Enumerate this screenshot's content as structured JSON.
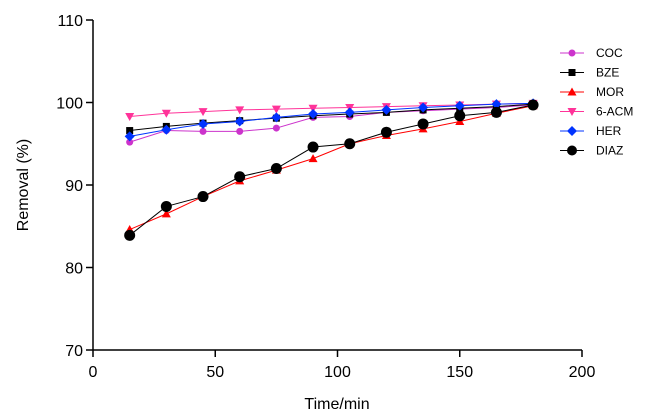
{
  "chart_data": {
    "type": "line",
    "title": "",
    "xlabel": "Time/min",
    "ylabel": "Removal (%)",
    "xlim": [
      0,
      200
    ],
    "ylim": [
      70,
      110
    ],
    "xticks": [
      0,
      50,
      100,
      150,
      200
    ],
    "yticks": [
      70,
      80,
      90,
      100,
      110
    ],
    "grid": false,
    "legend_position": "top-right",
    "series": [
      {
        "name": "COC",
        "color": "#cc33cc",
        "marker": "circle",
        "x": [
          15,
          30,
          45,
          60,
          75,
          90,
          105,
          120,
          135,
          150,
          165,
          180
        ],
        "y": [
          95.2,
          96.6,
          96.5,
          96.5,
          96.9,
          98.2,
          98.3,
          98.8,
          99.0,
          99.2,
          99.4,
          99.7
        ]
      },
      {
        "name": "BZE",
        "color": "#000000",
        "marker": "square",
        "x": [
          15,
          30,
          45,
          60,
          75,
          90,
          105,
          120,
          135,
          150,
          165,
          180
        ],
        "y": [
          96.6,
          97.1,
          97.5,
          97.8,
          98.1,
          98.4,
          98.6,
          98.8,
          99.1,
          99.3,
          99.5,
          99.8
        ]
      },
      {
        "name": "MOR",
        "color": "#ff0000",
        "marker": "triangle-up",
        "x": [
          15,
          30,
          45,
          60,
          75,
          90,
          105,
          120,
          135,
          150,
          165,
          180
        ],
        "y": [
          84.6,
          86.5,
          88.6,
          90.5,
          91.8,
          93.2,
          95.0,
          96.0,
          96.8,
          97.7,
          98.7,
          99.6
        ]
      },
      {
        "name": "6-ACM",
        "color": "#ff3399",
        "marker": "triangle-down",
        "x": [
          15,
          30,
          45,
          60,
          75,
          90,
          105,
          120,
          135,
          150,
          165,
          180
        ],
        "y": [
          98.3,
          98.7,
          98.9,
          99.1,
          99.2,
          99.3,
          99.4,
          99.5,
          99.6,
          99.7,
          99.8,
          99.9
        ]
      },
      {
        "name": "HER",
        "color": "#0033ff",
        "marker": "diamond",
        "x": [
          15,
          30,
          45,
          60,
          75,
          90,
          105,
          120,
          135,
          150,
          165,
          180
        ],
        "y": [
          95.9,
          96.7,
          97.4,
          97.7,
          98.2,
          98.6,
          98.8,
          99.1,
          99.4,
          99.6,
          99.8,
          99.9
        ]
      },
      {
        "name": "DIAZ",
        "color": "#000000",
        "marker": "big-circle",
        "x": [
          15,
          30,
          45,
          60,
          75,
          90,
          105,
          120,
          135,
          150,
          165,
          180
        ],
        "y": [
          83.9,
          87.4,
          88.6,
          91.0,
          92.0,
          94.6,
          95.0,
          96.4,
          97.4,
          98.4,
          98.8,
          99.7
        ]
      }
    ]
  }
}
